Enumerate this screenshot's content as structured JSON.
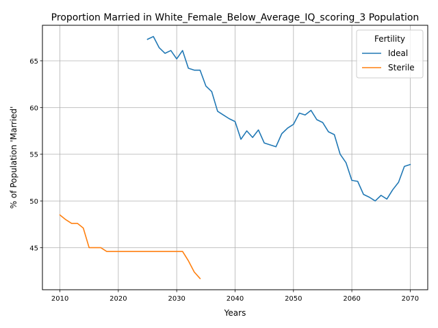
{
  "chart_data": {
    "type": "line",
    "title": "Proportion Married in White_Female_Below_Average_IQ_scoring_3 Population",
    "xlabel": "Years",
    "ylabel": "% of Population 'Married'",
    "xlim": [
      2007,
      2073
    ],
    "ylim": [
      40.5,
      68.8
    ],
    "xticks": [
      2010,
      2020,
      2030,
      2040,
      2050,
      2060,
      2070
    ],
    "yticks": [
      45,
      50,
      55,
      60,
      65
    ],
    "grid": true,
    "legend": {
      "title": "Fertility",
      "position": "top-right"
    },
    "series": [
      {
        "name": "Ideal",
        "color": "#1f77b4",
        "x": [
          2025,
          2026,
          2027,
          2028,
          2029,
          2030,
          2031,
          2032,
          2033,
          2034,
          2035,
          2036,
          2037,
          2038,
          2039,
          2040,
          2041,
          2042,
          2043,
          2044,
          2045,
          2046,
          2047,
          2048,
          2049,
          2050,
          2051,
          2052,
          2053,
          2054,
          2055,
          2056,
          2057,
          2058,
          2059,
          2060,
          2061,
          2062,
          2063,
          2064,
          2065,
          2066,
          2067,
          2068,
          2069,
          2070
        ],
        "y": [
          67.3,
          67.6,
          66.4,
          65.8,
          66.1,
          65.2,
          66.1,
          64.2,
          64.0,
          64.0,
          62.3,
          61.7,
          59.6,
          59.2,
          58.8,
          58.5,
          56.6,
          57.5,
          56.8,
          57.6,
          56.2,
          56.0,
          55.8,
          57.2,
          57.8,
          58.2,
          59.4,
          59.2,
          59.7,
          58.7,
          58.4,
          57.4,
          57.1,
          55.0,
          54.1,
          52.2,
          52.1,
          50.7,
          50.4,
          50.0,
          50.6,
          50.2,
          51.2,
          52.0,
          53.7,
          53.9
        ]
      },
      {
        "name": "Sterile",
        "color": "#ff7f0e",
        "x": [
          2010,
          2011,
          2012,
          2013,
          2014,
          2015,
          2016,
          2017,
          2018,
          2019,
          2020,
          2021,
          2022,
          2023,
          2024,
          2025,
          2026,
          2027,
          2028,
          2029,
          2030,
          2031,
          2032,
          2033,
          2034
        ],
        "y": [
          48.5,
          48.0,
          47.6,
          47.6,
          47.1,
          45.0,
          45.0,
          45.0,
          44.6,
          44.6,
          44.6,
          44.6,
          44.6,
          44.6,
          44.6,
          44.6,
          44.6,
          44.6,
          44.6,
          44.6,
          44.6,
          44.6,
          43.6,
          42.4,
          41.7
        ]
      }
    ]
  }
}
